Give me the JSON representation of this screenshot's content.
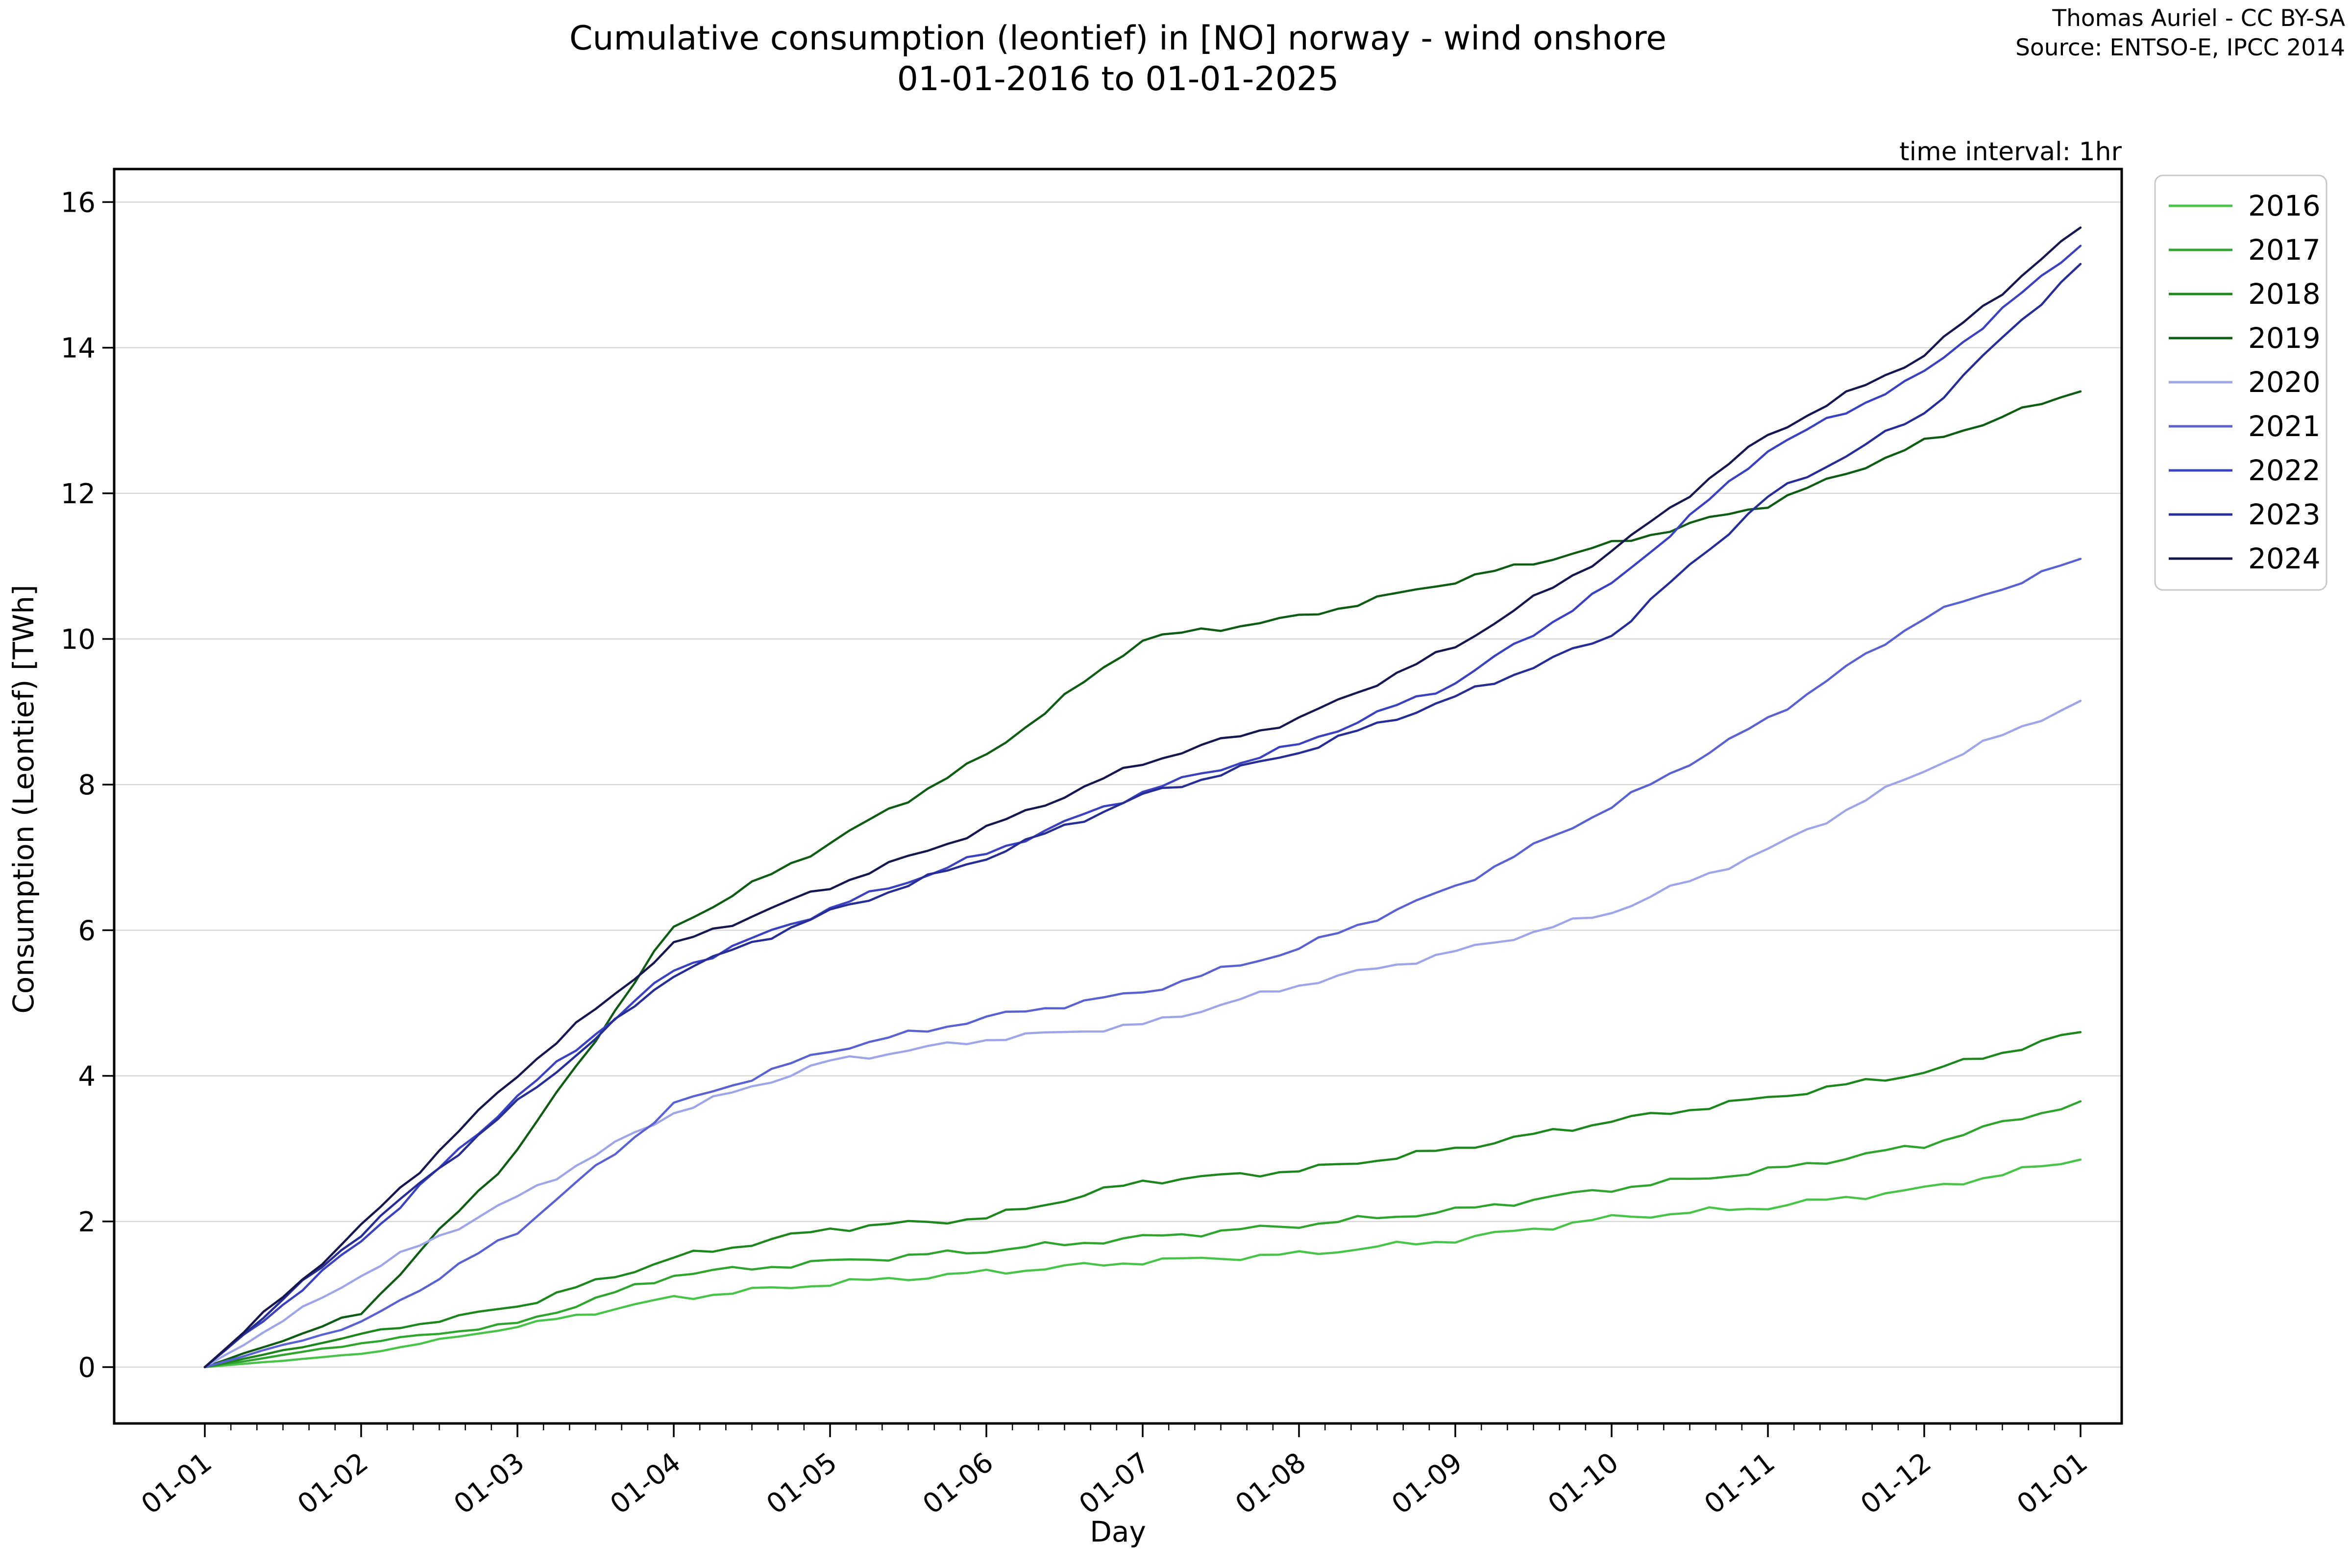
{
  "header": {
    "title_line1": "Cumulative consumption (leontief) in [NO] norway - wind onshore",
    "title_line2": "01-01-2016 to 01-01-2025",
    "attribution_line1": "Thomas Auriel - CC BY-SA",
    "attribution_line2": "Source: ENTSO-E, IPCC 2014",
    "interval_note": "time interval: 1hr"
  },
  "chart_data": {
    "type": "line",
    "title": "Cumulative consumption (leontief) in [NO] norway - wind onshore 01-01-2016 to 01-01-2025",
    "xlabel": "Day",
    "ylabel": "Consumption (Leontief) [TWh]",
    "x_tick_labels": [
      "01-01",
      "01-02",
      "01-03",
      "01-04",
      "01-05",
      "01-06",
      "01-07",
      "01-08",
      "01-09",
      "01-10",
      "01-11",
      "01-12",
      "01-01"
    ],
    "x_months": [
      0,
      1,
      2,
      3,
      4,
      5,
      6,
      7,
      8,
      9,
      10,
      11,
      12
    ],
    "y_ticks": [
      0,
      2,
      4,
      6,
      8,
      10,
      12,
      14,
      16
    ],
    "ylim": [
      0,
      16
    ],
    "grid": true,
    "grid_color": "#d8d8d8",
    "legend_position": "outside-upper-right",
    "series": [
      {
        "name": "2016",
        "color": "#4ac34a",
        "values": [
          0,
          0.18,
          0.56,
          0.95,
          1.15,
          1.3,
          1.45,
          1.55,
          1.75,
          2.05,
          2.2,
          2.45,
          2.85
        ]
      },
      {
        "name": "2017",
        "color": "#2fa42f",
        "values": [
          0,
          0.33,
          0.6,
          1.27,
          1.45,
          1.6,
          1.78,
          1.95,
          2.15,
          2.45,
          2.7,
          3.05,
          3.65
        ]
      },
      {
        "name": "2018",
        "color": "#1d861d",
        "values": [
          0,
          0.45,
          0.84,
          1.5,
          1.9,
          2.05,
          2.55,
          2.7,
          3.0,
          3.38,
          3.7,
          4.05,
          4.6
        ]
      },
      {
        "name": "2019",
        "color": "#0f5c14",
        "values": [
          0,
          0.74,
          2.98,
          6.05,
          7.2,
          8.4,
          10.0,
          10.3,
          10.8,
          11.3,
          11.85,
          12.7,
          13.4
        ]
      },
      {
        "name": "2020",
        "color": "#9fa6e8",
        "values": [
          0,
          1.27,
          2.33,
          3.5,
          4.2,
          4.5,
          4.7,
          5.25,
          5.7,
          6.25,
          7.1,
          8.2,
          9.15
        ]
      },
      {
        "name": "2021",
        "color": "#5a62d2",
        "values": [
          0,
          0.6,
          1.87,
          3.6,
          4.35,
          4.8,
          5.15,
          5.75,
          6.6,
          7.7,
          8.9,
          10.3,
          11.1
        ]
      },
      {
        "name": "2022",
        "color": "#3b42c0",
        "values": [
          0,
          1.73,
          3.72,
          5.45,
          6.3,
          7.05,
          7.9,
          8.55,
          9.4,
          10.75,
          12.6,
          13.65,
          15.4
        ]
      },
      {
        "name": "2023",
        "color": "#262d96",
        "values": [
          0,
          1.84,
          3.63,
          5.4,
          6.25,
          7.0,
          7.85,
          8.45,
          9.2,
          10.05,
          11.95,
          13.1,
          15.15
        ]
      },
      {
        "name": "2024",
        "color": "#17174f",
        "values": [
          0,
          1.93,
          4.02,
          5.8,
          6.6,
          7.4,
          8.3,
          8.9,
          9.9,
          11.2,
          12.8,
          13.9,
          15.65
        ]
      }
    ]
  }
}
